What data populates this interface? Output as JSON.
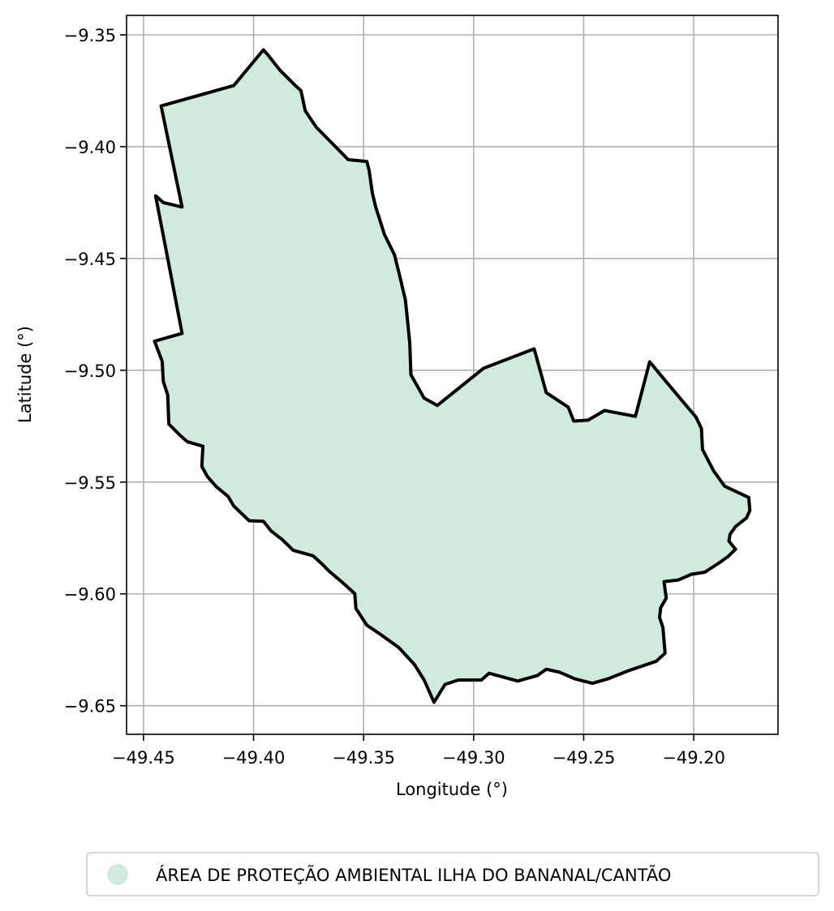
{
  "chart_data": {
    "type": "map",
    "xlabel": "Longitude (°)",
    "ylabel": "Latitude (°)",
    "xlim": [
      -49.4577,
      -49.1617
    ],
    "ylim": [
      -9.6628,
      -9.3413
    ],
    "x_ticks": [
      -49.45,
      -49.4,
      -49.35,
      -49.3,
      -49.25,
      -49.2
    ],
    "x_tick_labels": [
      "−49.45",
      "−49.40",
      "−49.35",
      "−49.30",
      "−49.25",
      "−49.20"
    ],
    "y_ticks": [
      -9.35,
      -9.4,
      -9.45,
      -9.5,
      -9.55,
      -9.6,
      -9.65
    ],
    "y_tick_labels": [
      "−9.35",
      "−9.40",
      "−9.45",
      "−9.50",
      "−9.55",
      "−9.60",
      "−9.65"
    ],
    "grid": true,
    "legend_position": "bottom-center",
    "legend": [
      {
        "label": "ÁREA DE PROTEÇÃO AMBIENTAL ILHA DO BANANAL/CANTÃO",
        "color": "#cfebde"
      }
    ],
    "fill_color": "#cfebde",
    "edge_color": "#000000",
    "polygon": [
      [
        -49.442,
        -9.3818
      ],
      [
        -49.409,
        -9.3727
      ],
      [
        -49.3955,
        -9.3567
      ],
      [
        -49.3935,
        -9.359
      ],
      [
        -49.388,
        -9.3658
      ],
      [
        -49.381,
        -9.3727
      ],
      [
        -49.3785,
        -9.3749
      ],
      [
        -49.3765,
        -9.384
      ],
      [
        -49.3715,
        -9.3913
      ],
      [
        -49.357,
        -9.4058
      ],
      [
        -49.3485,
        -9.4066
      ],
      [
        -49.3475,
        -9.4106
      ],
      [
        -49.346,
        -9.4208
      ],
      [
        -49.3445,
        -9.427
      ],
      [
        -49.3405,
        -9.4393
      ],
      [
        -49.336,
        -9.4483
      ],
      [
        -49.3335,
        -9.4581
      ],
      [
        -49.331,
        -9.4686
      ],
      [
        -49.33,
        -9.478
      ],
      [
        -49.329,
        -9.488
      ],
      [
        -49.3285,
        -9.502
      ],
      [
        -49.3225,
        -9.5125
      ],
      [
        -49.3165,
        -9.5157
      ],
      [
        -49.2955,
        -9.4991
      ],
      [
        -49.2725,
        -9.4904
      ],
      [
        -49.267,
        -9.51
      ],
      [
        -49.257,
        -9.5165
      ],
      [
        -49.2545,
        -9.5227
      ],
      [
        -49.248,
        -9.5223
      ],
      [
        -49.2405,
        -9.518
      ],
      [
        -49.2265,
        -9.5206
      ],
      [
        -49.22,
        -9.4962
      ],
      [
        -49.213,
        -9.5045
      ],
      [
        -49.205,
        -9.5139
      ],
      [
        -49.199,
        -9.5209
      ],
      [
        -49.1965,
        -9.526
      ],
      [
        -49.196,
        -9.5354
      ],
      [
        -49.191,
        -9.5449
      ],
      [
        -49.186,
        -9.5518
      ],
      [
        -49.175,
        -9.5569
      ],
      [
        -49.1745,
        -9.5627
      ],
      [
        -49.176,
        -9.566
      ],
      [
        -49.181,
        -9.5699
      ],
      [
        -49.1835,
        -9.5733
      ],
      [
        -49.184,
        -9.5764
      ],
      [
        -49.181,
        -9.58
      ],
      [
        -49.1845,
        -9.5834
      ],
      [
        -49.189,
        -9.5865
      ],
      [
        -49.195,
        -9.5903
      ],
      [
        -49.201,
        -9.5912
      ],
      [
        -49.207,
        -9.5938
      ],
      [
        -49.2135,
        -9.5945
      ],
      [
        -49.2125,
        -9.6019
      ],
      [
        -49.215,
        -9.6062
      ],
      [
        -49.2155,
        -9.6105
      ],
      [
        -49.214,
        -9.615
      ],
      [
        -49.213,
        -9.6265
      ],
      [
        -49.217,
        -9.6301
      ],
      [
        -49.23,
        -9.6345
      ],
      [
        -49.239,
        -9.638
      ],
      [
        -49.246,
        -9.64
      ],
      [
        -49.254,
        -9.638
      ],
      [
        -49.261,
        -9.635
      ],
      [
        -49.267,
        -9.6337
      ],
      [
        -49.271,
        -9.6365
      ],
      [
        -49.28,
        -9.639
      ],
      [
        -49.293,
        -9.6355
      ],
      [
        -49.2965,
        -9.6385
      ],
      [
        -49.307,
        -9.6385
      ],
      [
        -49.313,
        -9.6405
      ],
      [
        -49.318,
        -9.6485
      ],
      [
        -49.3225,
        -9.6385
      ],
      [
        -49.327,
        -9.6315
      ],
      [
        -49.334,
        -9.624
      ],
      [
        -49.3425,
        -9.618
      ],
      [
        -49.3485,
        -9.614
      ],
      [
        -49.3535,
        -9.6065
      ],
      [
        -49.354,
        -9.5999
      ],
      [
        -49.3595,
        -9.595
      ],
      [
        -49.3655,
        -9.59
      ],
      [
        -49.369,
        -9.5865
      ],
      [
        -49.373,
        -9.583
      ],
      [
        -49.382,
        -9.5805
      ],
      [
        -49.387,
        -9.5757
      ],
      [
        -49.392,
        -9.5719
      ],
      [
        -49.3955,
        -9.5675
      ],
      [
        -49.402,
        -9.5673
      ],
      [
        -49.409,
        -9.5607
      ],
      [
        -49.4115,
        -9.5565
      ],
      [
        -49.417,
        -9.552
      ],
      [
        -49.421,
        -9.5475
      ],
      [
        -49.4235,
        -9.543
      ],
      [
        -49.423,
        -9.534
      ],
      [
        -49.43,
        -9.532
      ],
      [
        -49.4335,
        -9.529
      ],
      [
        -49.4385,
        -9.524
      ],
      [
        -49.439,
        -9.511
      ],
      [
        -49.441,
        -9.505
      ],
      [
        -49.4415,
        -9.496
      ],
      [
        -49.445,
        -9.487
      ],
      [
        -49.4325,
        -9.4835
      ],
      [
        -49.438,
        -9.455
      ],
      [
        -49.4445,
        -9.422
      ],
      [
        -49.441,
        -9.425
      ],
      [
        -49.4325,
        -9.427
      ]
    ]
  }
}
